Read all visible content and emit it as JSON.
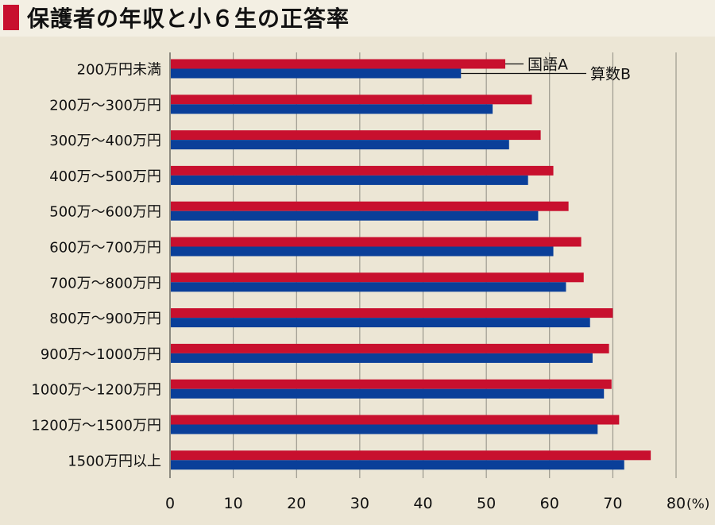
{
  "title": "保護者の年収と小６生の正答率",
  "colors": {
    "accent": "#c8102e",
    "series_a": "#c8102e",
    "series_b": "#0a3f99",
    "grid": "#8c8a80",
    "panel": "#ece6d5",
    "header_bg": "#f3efe3"
  },
  "chart_data": {
    "type": "bar",
    "orientation": "horizontal",
    "title": "保護者の年収と小６生の正答率",
    "categories": [
      "200万円未満",
      "200万～300万円",
      "300万～400万円",
      "400万～500万円",
      "500万～600万円",
      "600万～700万円",
      "700万～800万円",
      "800万～900万円",
      "900万～1000万円",
      "1000万～1200万円",
      "1200万～1500万円",
      "1500万円以上"
    ],
    "series": [
      {
        "name": "国語A",
        "color": "#c8102e",
        "values": [
          53,
          57.2,
          58.6,
          60.6,
          63,
          65,
          65.4,
          70,
          69.4,
          69.8,
          71,
          76
        ]
      },
      {
        "name": "算数B",
        "color": "#0a3f99",
        "values": [
          46,
          51,
          53.6,
          56.6,
          58.2,
          60.6,
          62.6,
          66.4,
          66.8,
          68.6,
          67.6,
          71.8
        ]
      }
    ],
    "xlim": [
      0,
      80
    ],
    "xticks": [
      "0",
      "10",
      "20",
      "30",
      "40",
      "50",
      "60",
      "70",
      "80"
    ],
    "unit_label": "(%)",
    "grid": true,
    "legend": "callout-top"
  }
}
